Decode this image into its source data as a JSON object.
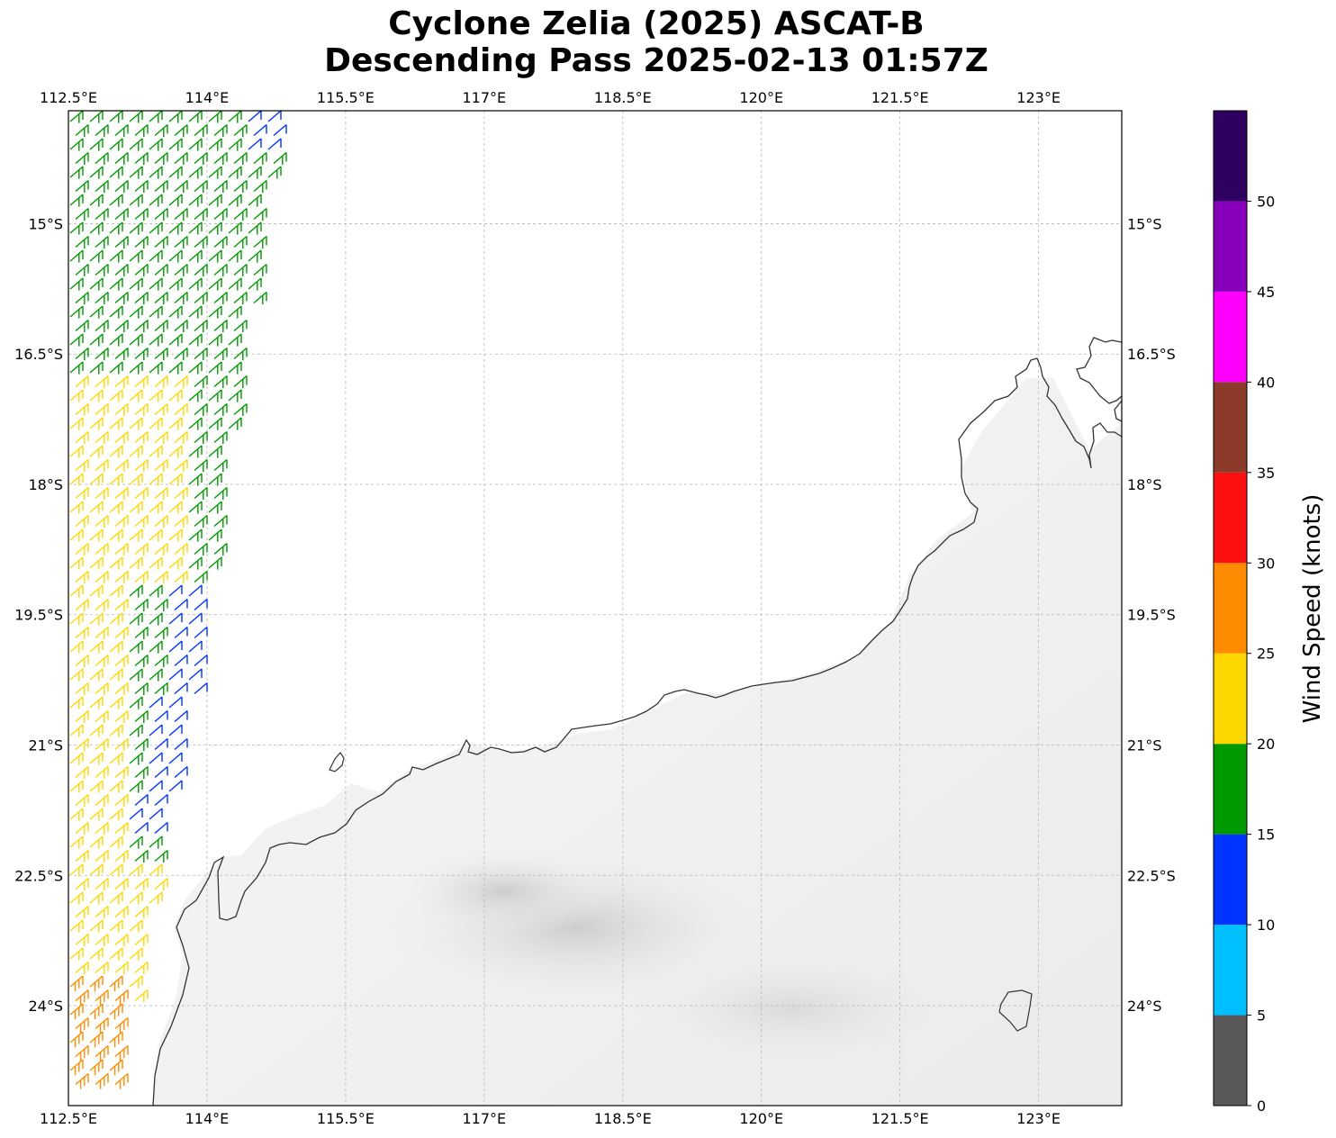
{
  "title": {
    "line1": "Cyclone Zelia (2025) ASCAT-B",
    "line2": "Descending Pass 2025-02-13 01:57Z"
  },
  "map": {
    "lon_range": [
      112.5,
      123.9
    ],
    "lat_range": [
      -25.15,
      -13.7
    ],
    "lon_ticks": [
      "112.5°E",
      "114°E",
      "115.5°E",
      "117°E",
      "118.5°E",
      "120°E",
      "121.5°E",
      "123°E"
    ],
    "lat_ticks": [
      "15°S",
      "16.5°S",
      "18°S",
      "19.5°S",
      "21°S",
      "22.5°S",
      "24°S"
    ],
    "gridlines": true,
    "coastline_color": "#333333",
    "background": "grayscale satellite IR over land/ocean"
  },
  "colorbar": {
    "label": "Wind Speed (knots)",
    "ticks": [
      "0",
      "5",
      "10",
      "15",
      "20",
      "25",
      "30",
      "35",
      "40",
      "45",
      "50"
    ],
    "colors": [
      "#595959",
      "#00bfff",
      "#0033ff",
      "#009900",
      "#ffd700",
      "#ff8c00",
      "#ff1010",
      "#8b3a2a",
      "#ff00ff",
      "#8800bb",
      "#2e0060"
    ],
    "range": [
      0,
      55
    ]
  },
  "wind_barbs": {
    "swath": "western edge of pass",
    "speed_bins_present": [
      "10-15",
      "15-20",
      "20-25",
      "25-30"
    ]
  }
}
